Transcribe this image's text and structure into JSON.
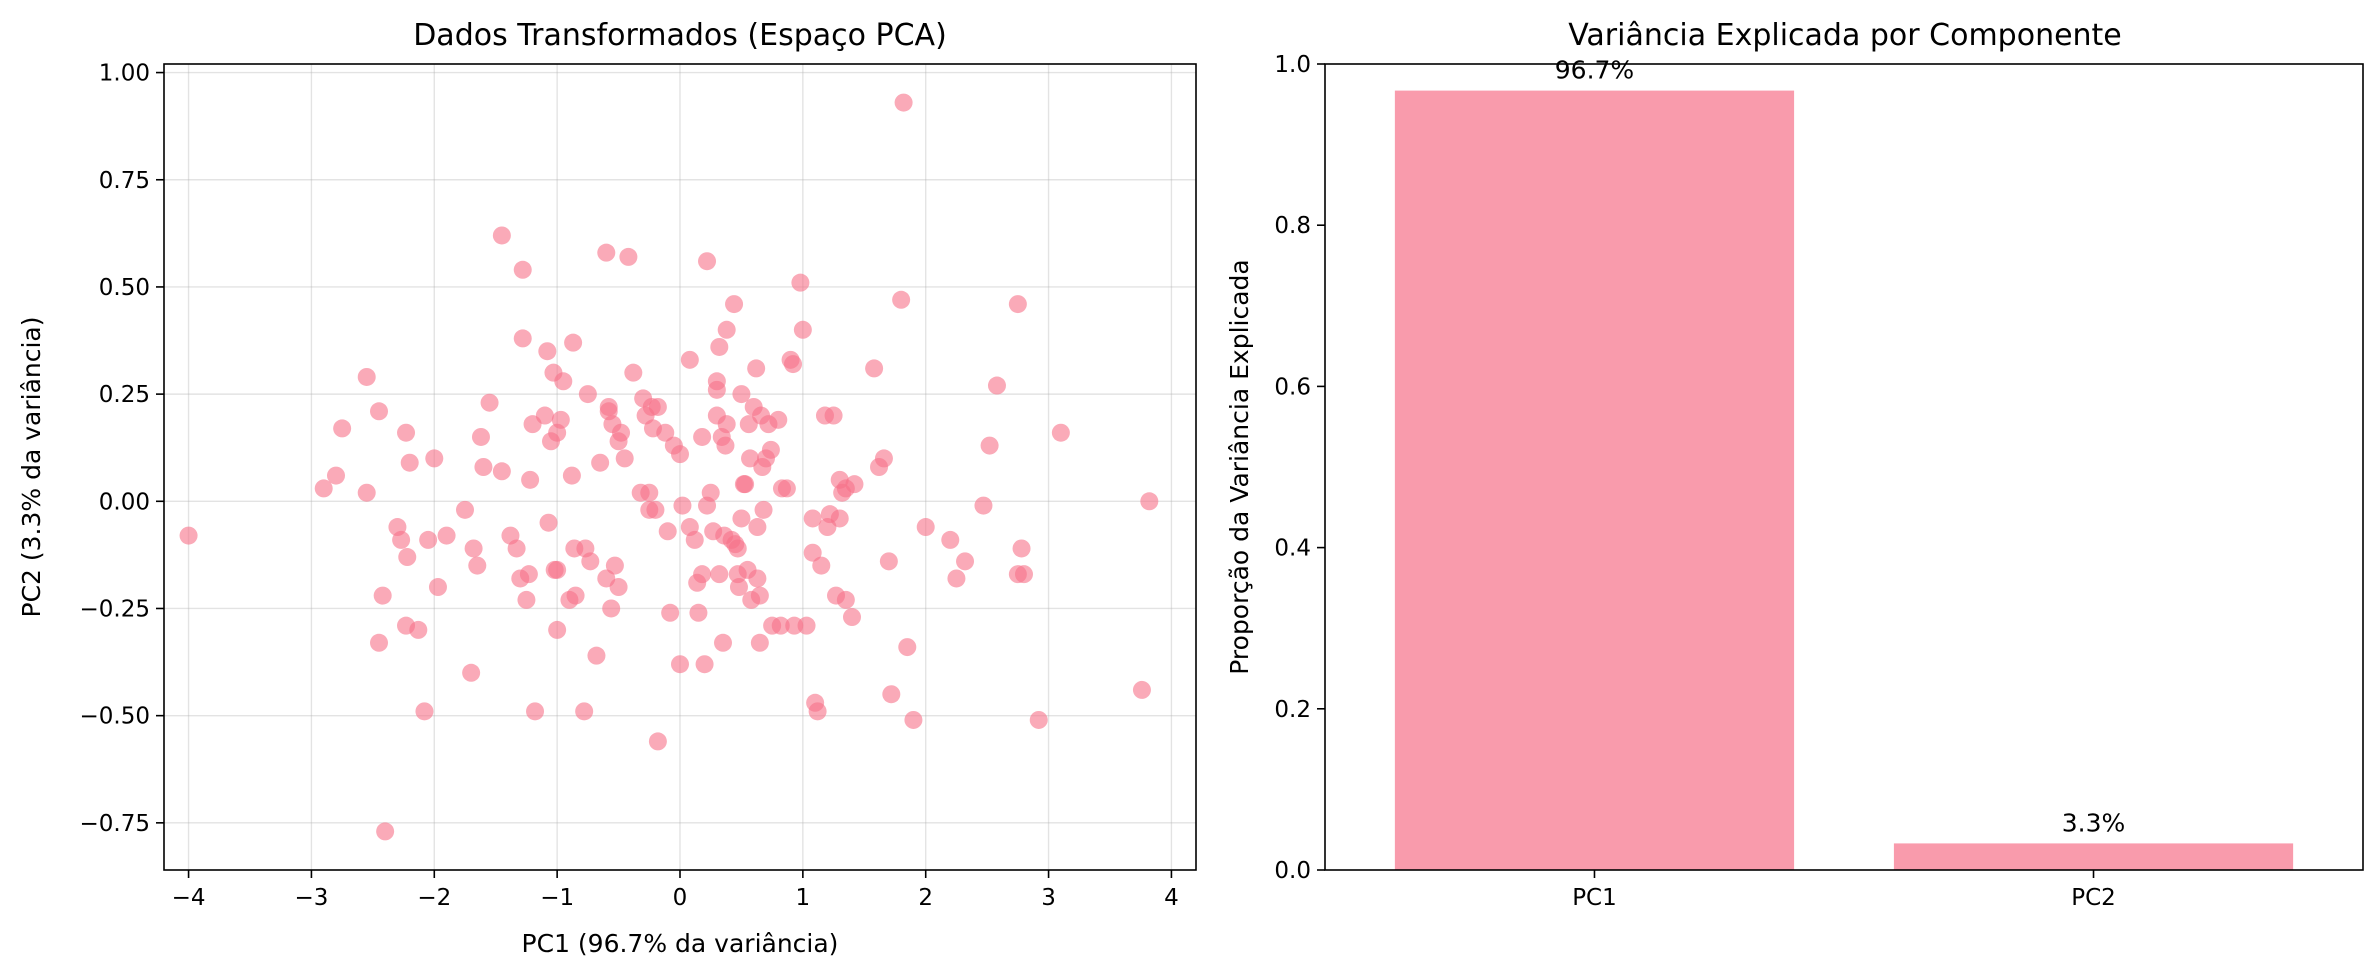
{
  "chart_data": [
    {
      "type": "scatter",
      "title": "Dados Transformados (Espaço PCA)",
      "xlabel": "PC1 (96.7% da variância)",
      "ylabel": "PC2 (3.3% da variância)",
      "xlim": [
        -4.2,
        4.2
      ],
      "ylim": [
        -0.86,
        1.02
      ],
      "xticks": [
        -4,
        -3,
        -2,
        -1,
        0,
        1,
        2,
        3,
        4
      ],
      "xtick_labels": [
        "−4",
        "−3",
        "−2",
        "−1",
        "0",
        "1",
        "2",
        "3",
        "4"
      ],
      "yticks": [
        -0.75,
        -0.5,
        -0.25,
        0.0,
        0.25,
        0.5,
        0.75,
        1.0
      ],
      "ytick_labels": [
        "−0.75",
        "−0.50",
        "−0.25",
        "0.00",
        "0.25",
        "0.50",
        "0.75",
        "1.00"
      ],
      "grid": true,
      "color": "#f77189",
      "alpha": 0.6,
      "points": [
        [
          -4.0,
          -0.08
        ],
        [
          -2.9,
          0.03
        ],
        [
          -2.8,
          0.06
        ],
        [
          -2.75,
          0.17
        ],
        [
          -2.55,
          0.29
        ],
        [
          -2.55,
          0.02
        ],
        [
          -2.45,
          0.21
        ],
        [
          -2.45,
          -0.33
        ],
        [
          -2.42,
          -0.22
        ],
        [
          -2.4,
          -0.77
        ],
        [
          -2.3,
          -0.06
        ],
        [
          -2.27,
          -0.09
        ],
        [
          -2.23,
          0.16
        ],
        [
          -2.22,
          -0.13
        ],
        [
          -2.2,
          0.09
        ],
        [
          -2.23,
          -0.29
        ],
        [
          -2.13,
          -0.3
        ],
        [
          -2.08,
          -0.49
        ],
        [
          -2.05,
          -0.09
        ],
        [
          -2.0,
          0.1
        ],
        [
          -1.97,
          -0.2
        ],
        [
          -1.9,
          -0.08
        ],
        [
          -1.75,
          -0.02
        ],
        [
          -1.7,
          -0.4
        ],
        [
          -1.68,
          -0.11
        ],
        [
          -1.65,
          -0.15
        ],
        [
          -1.62,
          0.15
        ],
        [
          -1.6,
          0.08
        ],
        [
          -1.55,
          0.23
        ],
        [
          -1.45,
          0.07
        ],
        [
          -1.45,
          0.62
        ],
        [
          -1.38,
          -0.08
        ],
        [
          -1.33,
          -0.11
        ],
        [
          -1.3,
          -0.18
        ],
        [
          -1.28,
          0.38
        ],
        [
          -1.28,
          0.54
        ],
        [
          -1.25,
          -0.23
        ],
        [
          -1.23,
          -0.17
        ],
        [
          -1.22,
          0.05
        ],
        [
          -1.2,
          0.18
        ],
        [
          -1.18,
          -0.49
        ],
        [
          -1.1,
          0.2
        ],
        [
          -1.08,
          0.35
        ],
        [
          -1.07,
          -0.05
        ],
        [
          -1.05,
          0.14
        ],
        [
          -1.03,
          0.3
        ],
        [
          -1.02,
          -0.16
        ],
        [
          -1.0,
          0.16
        ],
        [
          -1.0,
          -0.16
        ],
        [
          -1.0,
          -0.3
        ],
        [
          -0.97,
          0.19
        ],
        [
          -0.95,
          0.28
        ],
        [
          -0.9,
          -0.23
        ],
        [
          -0.88,
          0.06
        ],
        [
          -0.87,
          0.37
        ],
        [
          -0.86,
          -0.11
        ],
        [
          -0.85,
          -0.22
        ],
        [
          -0.78,
          -0.49
        ],
        [
          -0.77,
          -0.11
        ],
        [
          -0.75,
          0.25
        ],
        [
          -0.73,
          -0.14
        ],
        [
          -0.68,
          -0.36
        ],
        [
          -0.65,
          0.09
        ],
        [
          -0.6,
          -0.18
        ],
        [
          -0.6,
          0.58
        ],
        [
          -0.58,
          0.22
        ],
        [
          -0.58,
          0.21
        ],
        [
          -0.56,
          -0.25
        ],
        [
          -0.55,
          0.18
        ],
        [
          -0.53,
          -0.15
        ],
        [
          -0.5,
          0.14
        ],
        [
          -0.5,
          -0.2
        ],
        [
          -0.48,
          0.16
        ],
        [
          -0.45,
          0.1
        ],
        [
          -0.42,
          0.57
        ],
        [
          -0.38,
          0.3
        ],
        [
          -0.32,
          0.02
        ],
        [
          -0.3,
          0.24
        ],
        [
          -0.28,
          0.2
        ],
        [
          -0.25,
          -0.02
        ],
        [
          -0.25,
          0.02
        ],
        [
          -0.23,
          0.22
        ],
        [
          -0.22,
          0.17
        ],
        [
          -0.18,
          0.22
        ],
        [
          -0.2,
          -0.02
        ],
        [
          -0.18,
          -0.56
        ],
        [
          -0.12,
          0.16
        ],
        [
          -0.1,
          -0.07
        ],
        [
          -0.08,
          -0.26
        ],
        [
          -0.05,
          0.13
        ],
        [
          0.0,
          0.11
        ],
        [
          0.0,
          -0.38
        ],
        [
          0.02,
          -0.01
        ],
        [
          0.08,
          0.33
        ],
        [
          0.08,
          -0.06
        ],
        [
          0.12,
          -0.09
        ],
        [
          0.14,
          -0.19
        ],
        [
          0.15,
          -0.26
        ],
        [
          0.18,
          0.15
        ],
        [
          0.18,
          -0.17
        ],
        [
          0.2,
          -0.38
        ],
        [
          0.22,
          -0.01
        ],
        [
          0.22,
          0.56
        ],
        [
          0.25,
          0.02
        ],
        [
          0.27,
          -0.07
        ],
        [
          0.3,
          0.28
        ],
        [
          0.3,
          0.26
        ],
        [
          0.3,
          0.2
        ],
        [
          0.32,
          0.36
        ],
        [
          0.32,
          -0.17
        ],
        [
          0.34,
          0.15
        ],
        [
          0.35,
          -0.33
        ],
        [
          0.36,
          -0.08
        ],
        [
          0.37,
          0.13
        ],
        [
          0.38,
          0.18
        ],
        [
          0.38,
          0.4
        ],
        [
          0.42,
          -0.09
        ],
        [
          0.44,
          0.46
        ],
        [
          0.45,
          -0.1
        ],
        [
          0.47,
          -0.11
        ],
        [
          0.47,
          -0.17
        ],
        [
          0.48,
          -0.2
        ],
        [
          0.5,
          -0.04
        ],
        [
          0.5,
          0.25
        ],
        [
          0.52,
          0.04
        ],
        [
          0.53,
          0.04
        ],
        [
          0.55,
          -0.16
        ],
        [
          0.56,
          0.18
        ],
        [
          0.57,
          0.1
        ],
        [
          0.58,
          -0.23
        ],
        [
          0.6,
          0.22
        ],
        [
          0.62,
          0.31
        ],
        [
          0.63,
          -0.06
        ],
        [
          0.63,
          -0.18
        ],
        [
          0.65,
          -0.22
        ],
        [
          0.65,
          -0.33
        ],
        [
          0.66,
          0.2
        ],
        [
          0.67,
          0.08
        ],
        [
          0.68,
          -0.02
        ],
        [
          0.7,
          0.1
        ],
        [
          0.72,
          0.18
        ],
        [
          0.74,
          0.12
        ],
        [
          0.75,
          -0.29
        ],
        [
          0.8,
          0.19
        ],
        [
          0.82,
          -0.29
        ],
        [
          0.83,
          0.03
        ],
        [
          0.87,
          0.03
        ],
        [
          0.9,
          0.33
        ],
        [
          0.92,
          0.32
        ],
        [
          0.93,
          -0.29
        ],
        [
          0.98,
          0.51
        ],
        [
          1.0,
          0.4
        ],
        [
          1.03,
          -0.29
        ],
        [
          1.08,
          -0.04
        ],
        [
          1.08,
          -0.12
        ],
        [
          1.1,
          -0.47
        ],
        [
          1.12,
          -0.49
        ],
        [
          1.15,
          -0.15
        ],
        [
          1.18,
          0.2
        ],
        [
          1.2,
          -0.06
        ],
        [
          1.22,
          -0.03
        ],
        [
          1.25,
          0.2
        ],
        [
          1.27,
          -0.22
        ],
        [
          1.3,
          0.05
        ],
        [
          1.3,
          -0.04
        ],
        [
          1.32,
          0.02
        ],
        [
          1.35,
          -0.23
        ],
        [
          1.35,
          0.03
        ],
        [
          1.4,
          -0.27
        ],
        [
          1.42,
          0.04
        ],
        [
          1.58,
          0.31
        ],
        [
          1.62,
          0.08
        ],
        [
          1.66,
          0.1
        ],
        [
          1.7,
          -0.14
        ],
        [
          1.72,
          -0.45
        ],
        [
          1.8,
          0.47
        ],
        [
          1.82,
          0.93
        ],
        [
          1.85,
          -0.34
        ],
        [
          1.9,
          -0.51
        ],
        [
          2.0,
          -0.06
        ],
        [
          2.2,
          -0.09
        ],
        [
          2.25,
          -0.18
        ],
        [
          2.32,
          -0.14
        ],
        [
          2.47,
          -0.01
        ],
        [
          2.52,
          0.13
        ],
        [
          2.58,
          0.27
        ],
        [
          2.75,
          0.46
        ],
        [
          2.75,
          -0.17
        ],
        [
          2.78,
          -0.11
        ],
        [
          2.8,
          -0.17
        ],
        [
          2.92,
          -0.51
        ],
        [
          3.1,
          0.16
        ],
        [
          3.76,
          -0.44
        ],
        [
          3.82,
          0.0
        ]
      ]
    },
    {
      "type": "bar",
      "title": "Variância Explicada por Componente",
      "xlabel": "",
      "ylabel": "Proporção da Variância Explicada",
      "categories": [
        "PC1",
        "PC2"
      ],
      "values": [
        0.967,
        0.033
      ],
      "value_labels": [
        "96.7%",
        "3.3%"
      ],
      "ylim": [
        0,
        1.0
      ],
      "yticks": [
        0.0,
        0.2,
        0.4,
        0.6,
        0.8,
        1.0
      ],
      "ytick_labels": [
        "0.0",
        "0.2",
        "0.4",
        "0.6",
        "0.8",
        "1.0"
      ],
      "grid": false,
      "color": "#f77189",
      "alpha": 0.7
    }
  ]
}
